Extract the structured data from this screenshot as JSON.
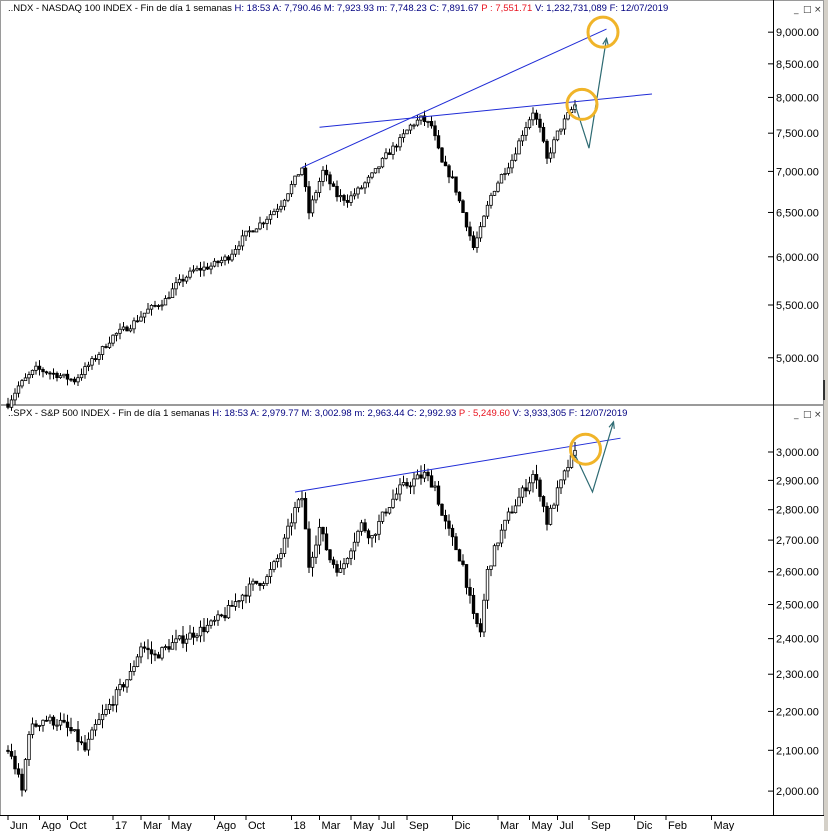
{
  "colors": {
    "background": "#ffffff",
    "candle": "#000000",
    "trendline": "#1f2bd6",
    "projection_arrow": "#2e6b73",
    "highlight_circle": "#f0b429",
    "price_text": "#e8131f",
    "header_text": "#000080"
  },
  "window_buttons": {
    "minimize": "_",
    "restore": "□",
    "close": "×"
  },
  "chart_data": [
    {
      "type": "candlestick",
      "header": {
        "symbol": ".NDX",
        "name": "NASDAQ 100 INDEX",
        "period": "Fin de día 1 semanas",
        "h": "H: 18:53",
        "a": "A: 7,790.46",
        "m": "M: 7,923.93",
        "min": "m: 7,748.23",
        "c": "C: 7,891.67",
        "p": "P : 7,551.71",
        "v": "V: 1,232,731,089",
        "f": "F: 12/07/2019"
      },
      "scale": "log",
      "ylim": [
        4650,
        9200
      ],
      "yticks": [
        "9,000.00",
        "8,500.00",
        "8,000.00",
        "7,500.00",
        "7,000.00",
        "6,500.00",
        "6,000.00",
        "5,500.00",
        "5,000.00"
      ],
      "ytick_values": [
        9000,
        8500,
        8000,
        7500,
        7000,
        6500,
        6000,
        5500,
        5000
      ],
      "price_anchors": [
        [
          0,
          4600
        ],
        [
          3,
          4750
        ],
        [
          8,
          4900
        ],
        [
          14,
          4850
        ],
        [
          19,
          4800
        ],
        [
          25,
          5000
        ],
        [
          30,
          5200
        ],
        [
          35,
          5300
        ],
        [
          40,
          5450
        ],
        [
          45,
          5550
        ],
        [
          48,
          5700
        ],
        [
          53,
          5850
        ],
        [
          58,
          5900
        ],
        [
          63,
          6000
        ],
        [
          68,
          6250
        ],
        [
          73,
          6400
        ],
        [
          78,
          6600
        ],
        [
          84,
          7050
        ],
        [
          86,
          6500
        ],
        [
          90,
          7000
        ],
        [
          94,
          6700
        ],
        [
          97,
          6650
        ],
        [
          101,
          6800
        ],
        [
          105,
          7000
        ],
        [
          108,
          7200
        ],
        [
          112,
          7400
        ],
        [
          115,
          7600
        ],
        [
          118,
          7700
        ],
        [
          121,
          7600
        ],
        [
          124,
          7100
        ],
        [
          127,
          6900
        ],
        [
          130,
          6500
        ],
        [
          133,
          6100
        ],
        [
          135,
          6300
        ],
        [
          138,
          6700
        ],
        [
          141,
          6950
        ],
        [
          144,
          7150
        ],
        [
          147,
          7500
        ],
        [
          150,
          7800
        ],
        [
          152,
          7550
        ],
        [
          154,
          7150
        ],
        [
          157,
          7500
        ],
        [
          160,
          7750
        ],
        [
          162,
          7890
        ]
      ],
      "trendlines": [
        {
          "from": [
            84,
            7050
          ],
          "to": [
            171,
            9050
          ]
        },
        {
          "from": [
            89,
            7580
          ],
          "to": [
            184,
            8050
          ]
        }
      ],
      "projection": [
        [
          162,
          7900
        ],
        [
          166,
          7300
        ],
        [
          171,
          8900
        ]
      ],
      "highlight_circles": [
        [
          164,
          7900
        ],
        [
          170,
          9000
        ]
      ]
    },
    {
      "type": "candlestick",
      "header": {
        "symbol": ".SPX",
        "name": "S&P 500 INDEX",
        "period": "Fin de día 1 semanas",
        "h": "H: 18:53",
        "a": "A: 2,979.77",
        "m": "M: 3,002.98",
        "min": "m: 2,963.44",
        "c": "C: 2,992.93",
        "p": "P : 5,249.60",
        "v": "V: 3,933,305",
        "f": "F: 12/07/2019"
      },
      "scale": "log",
      "ylim": [
        1960,
        3080
      ],
      "yticks": [
        "3,000.00",
        "2,900.00",
        "2,800.00",
        "2,700.00",
        "2,600.00",
        "2,500.00",
        "2,400.00",
        "2,300.00",
        "2,200.00",
        "2,100.00",
        "2,000.00"
      ],
      "ytick_values": [
        3000,
        2900,
        2800,
        2700,
        2600,
        2500,
        2400,
        2300,
        2200,
        2100,
        2000
      ],
      "price_anchors": [
        [
          0,
          2100
        ],
        [
          2,
          2060
        ],
        [
          4,
          2000
        ],
        [
          6,
          2150
        ],
        [
          10,
          2180
        ],
        [
          15,
          2170
        ],
        [
          19,
          2140
        ],
        [
          22,
          2100
        ],
        [
          25,
          2160
        ],
        [
          28,
          2200
        ],
        [
          32,
          2260
        ],
        [
          35,
          2300
        ],
        [
          38,
          2380
        ],
        [
          42,
          2350
        ],
        [
          46,
          2380
        ],
        [
          50,
          2400
        ],
        [
          54,
          2420
        ],
        [
          58,
          2440
        ],
        [
          62,
          2470
        ],
        [
          66,
          2520
        ],
        [
          70,
          2560
        ],
        [
          74,
          2580
        ],
        [
          78,
          2660
        ],
        [
          82,
          2800
        ],
        [
          84,
          2840
        ],
        [
          86,
          2620
        ],
        [
          89,
          2740
        ],
        [
          92,
          2640
        ],
        [
          95,
          2600
        ],
        [
          98,
          2680
        ],
        [
          101,
          2750
        ],
        [
          104,
          2710
        ],
        [
          108,
          2800
        ],
        [
          112,
          2870
        ],
        [
          116,
          2900
        ],
        [
          119,
          2920
        ],
        [
          122,
          2880
        ],
        [
          124,
          2780
        ],
        [
          127,
          2700
        ],
        [
          130,
          2620
        ],
        [
          133,
          2460
        ],
        [
          135,
          2420
        ],
        [
          137,
          2600
        ],
        [
          140,
          2700
        ],
        [
          143,
          2780
        ],
        [
          146,
          2840
        ],
        [
          150,
          2920
        ],
        [
          152,
          2860
        ],
        [
          154,
          2760
        ],
        [
          157,
          2860
        ],
        [
          160,
          2950
        ],
        [
          162,
          2993
        ]
      ],
      "trendlines": [
        {
          "from": [
            82,
            2860
          ],
          "to": [
            175,
            3050
          ]
        }
      ],
      "projection": [
        [
          162,
          2990
        ],
        [
          167,
          2860
        ],
        [
          173,
          3110
        ]
      ],
      "highlight_circles": [
        [
          165,
          3010
        ]
      ]
    }
  ],
  "x_axis": {
    "labels": [
      {
        "text": "Jun",
        "week": 0
      },
      {
        "text": "Ago",
        "week": 9
      },
      {
        "text": "Oct",
        "week": 17
      },
      {
        "text": "17",
        "week": 30
      },
      {
        "text": "Mar",
        "week": 38
      },
      {
        "text": "May",
        "week": 46
      },
      {
        "text": "Ago",
        "week": 59
      },
      {
        "text": "Oct",
        "week": 68
      },
      {
        "text": "18",
        "week": 81
      },
      {
        "text": "Mar",
        "week": 89
      },
      {
        "text": "May",
        "week": 98
      },
      {
        "text": "Jul",
        "week": 106
      },
      {
        "text": "Sep",
        "week": 114
      },
      {
        "text": "Dic",
        "week": 127
      },
      {
        "text": "Mar",
        "week": 140
      },
      {
        "text": "May",
        "week": 149
      },
      {
        "text": "Jul",
        "week": 157
      },
      {
        "text": "Sep",
        "week": 166
      },
      {
        "text": "Dic",
        "week": 179
      },
      {
        "text": "Feb",
        "week": 188
      },
      {
        "text": "May",
        "week": 201
      }
    ]
  }
}
